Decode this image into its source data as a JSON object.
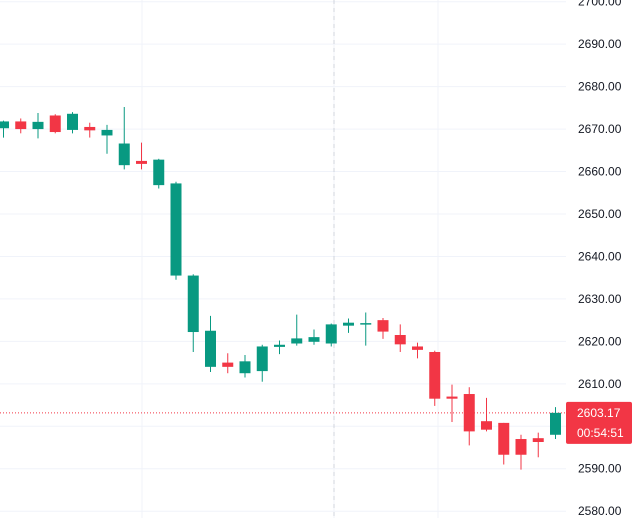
{
  "chart_data": {
    "type": "candlestick",
    "y_axis": {
      "position": "right",
      "ticks": [
        "2580.00",
        "2590.00",
        "2600.00",
        "2610.00",
        "2620.00",
        "2630.00",
        "2640.00",
        "2650.00",
        "2660.00",
        "2670.00",
        "2680.00",
        "2690.00",
        "2700.00"
      ],
      "tick_values": [
        2580,
        2590,
        2600,
        2610,
        2620,
        2630,
        2640,
        2650,
        2660,
        2670,
        2680,
        2690,
        2700
      ],
      "ylim": [
        2578.4,
        2700.4
      ]
    },
    "grid": true,
    "candles": [
      {
        "open": 2670.2,
        "high": 2672.0,
        "low": 2668.0,
        "close": 2671.8
      },
      {
        "open": 2671.8,
        "high": 2672.5,
        "low": 2669.0,
        "close": 2670.0
      },
      {
        "open": 2670.0,
        "high": 2673.8,
        "low": 2667.8,
        "close": 2671.7
      },
      {
        "open": 2673.2,
        "high": 2673.5,
        "low": 2669.0,
        "close": 2669.3
      },
      {
        "open": 2669.8,
        "high": 2674.0,
        "low": 2669.0,
        "close": 2673.6
      },
      {
        "open": 2670.5,
        "high": 2671.5,
        "low": 2668.0,
        "close": 2669.7
      },
      {
        "open": 2668.5,
        "high": 2671.0,
        "low": 2664.2,
        "close": 2669.8
      },
      {
        "open": 2661.5,
        "high": 2675.2,
        "low": 2660.5,
        "close": 2666.6
      },
      {
        "open": 2662.5,
        "high": 2666.8,
        "low": 2660.5,
        "close": 2661.8
      },
      {
        "open": 2656.8,
        "high": 2663.0,
        "low": 2656.0,
        "close": 2662.8
      },
      {
        "open": 2635.5,
        "high": 2657.6,
        "low": 2634.5,
        "close": 2657.2
      },
      {
        "open": 2622.2,
        "high": 2635.8,
        "low": 2617.5,
        "close": 2635.5
      },
      {
        "open": 2614.0,
        "high": 2626.0,
        "low": 2612.8,
        "close": 2622.5
      },
      {
        "open": 2615.0,
        "high": 2617.2,
        "low": 2612.5,
        "close": 2614.0
      },
      {
        "open": 2612.5,
        "high": 2616.8,
        "low": 2611.5,
        "close": 2615.3
      },
      {
        "open": 2613.0,
        "high": 2619.2,
        "low": 2610.5,
        "close": 2618.8
      },
      {
        "open": 2618.7,
        "high": 2620.2,
        "low": 2617.0,
        "close": 2619.2
      },
      {
        "open": 2619.5,
        "high": 2626.3,
        "low": 2619.0,
        "close": 2620.7
      },
      {
        "open": 2619.9,
        "high": 2622.8,
        "low": 2619.2,
        "close": 2621.0
      },
      {
        "open": 2619.5,
        "high": 2624.2,
        "low": 2618.8,
        "close": 2624.0
      },
      {
        "open": 2623.7,
        "high": 2625.4,
        "low": 2622.0,
        "close": 2624.4
      },
      {
        "open": 2624.0,
        "high": 2626.8,
        "low": 2619.0,
        "close": 2624.3
      },
      {
        "open": 2625.0,
        "high": 2625.5,
        "low": 2620.6,
        "close": 2622.3
      },
      {
        "open": 2621.5,
        "high": 2624.0,
        "low": 2617.5,
        "close": 2619.3
      },
      {
        "open": 2618.8,
        "high": 2619.7,
        "low": 2616.0,
        "close": 2618.0
      },
      {
        "open": 2617.5,
        "high": 2617.8,
        "low": 2604.8,
        "close": 2606.5
      },
      {
        "open": 2607.0,
        "high": 2609.8,
        "low": 2601.0,
        "close": 2606.5
      },
      {
        "open": 2607.6,
        "high": 2609.2,
        "low": 2595.5,
        "close": 2598.8
      },
      {
        "open": 2601.2,
        "high": 2606.7,
        "low": 2598.8,
        "close": 2599.2
      },
      {
        "open": 2600.8,
        "high": 2600.8,
        "low": 2591.0,
        "close": 2593.3
      },
      {
        "open": 2597.0,
        "high": 2598.0,
        "low": 2589.8,
        "close": 2593.3
      },
      {
        "open": 2597.2,
        "high": 2598.5,
        "low": 2592.7,
        "close": 2596.3
      },
      {
        "open": 2598.0,
        "high": 2604.5,
        "low": 2597.0,
        "close": 2603.17
      }
    ],
    "last_price": {
      "value": 2603.17,
      "label": "2603.17",
      "countdown": "00:54:51",
      "color": "#f23645"
    },
    "colors": {
      "up": "#089981",
      "down": "#f23645",
      "grid": "#f0f3fa",
      "axis_text": "#131722",
      "crosshair": "#d1d4dc"
    }
  }
}
